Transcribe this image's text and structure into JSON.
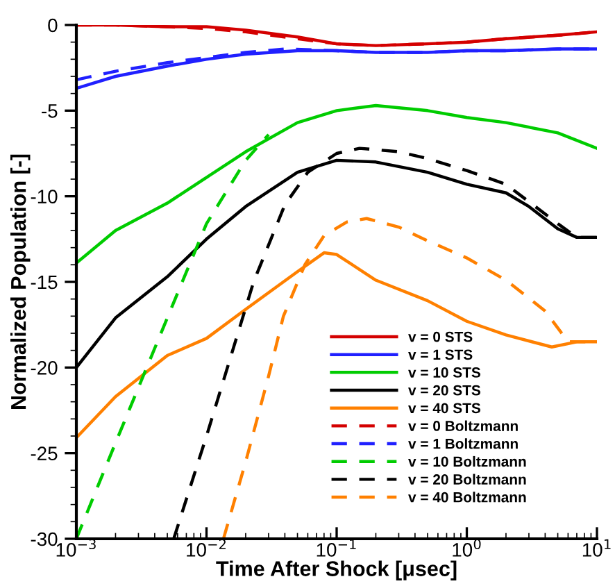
{
  "chart_data": {
    "type": "line",
    "xlabel": "Time After Shock [μsec]",
    "ylabel": "Normalized Population [-]",
    "log": "x",
    "grid": false,
    "legend": "bottom right",
    "xlim": [
      0.001,
      10
    ],
    "xticks": [
      {
        "value": 0.001,
        "label": "10$^{−3}$"
      },
      {
        "value": 0.01,
        "label": "10$^{−2}$"
      },
      {
        "value": 0.1,
        "label": "10$^{−1}$"
      },
      {
        "value": 1,
        "label": "10$^{0}$"
      },
      {
        "value": 10,
        "label": "10$^{1}$"
      }
    ],
    "ylim": [
      -30,
      0
    ],
    "yticks": [
      -30,
      -25,
      -20,
      -15,
      -10,
      -5,
      0
    ],
    "series": [
      {
        "name": "v = 0 STS",
        "color": "#d40000",
        "line_style": "solid",
        "x": [
          0.001,
          0.002,
          0.005,
          0.01,
          0.02,
          0.05,
          0.1,
          0.2,
          0.5,
          1,
          2,
          5,
          10
        ],
        "values": [
          0,
          0,
          -0.1,
          -0.1,
          -0.3,
          -0.7,
          -1.1,
          -1.2,
          -1.1,
          -1.0,
          -0.8,
          -0.6,
          -0.4
        ]
      },
      {
        "name": "v = 1 STS",
        "color": "#2020ff",
        "line_style": "solid",
        "x": [
          0.001,
          0.002,
          0.005,
          0.01,
          0.02,
          0.05,
          0.1,
          0.2,
          0.5,
          1,
          2,
          5,
          10
        ],
        "values": [
          -3.7,
          -3.0,
          -2.4,
          -2.0,
          -1.7,
          -1.5,
          -1.5,
          -1.6,
          -1.6,
          -1.5,
          -1.5,
          -1.4,
          -1.4
        ]
      },
      {
        "name": "v = 10 STS",
        "color": "#00cc00",
        "line_style": "solid",
        "x": [
          0.001,
          0.002,
          0.005,
          0.01,
          0.02,
          0.05,
          0.1,
          0.2,
          0.5,
          1,
          2,
          5,
          10
        ],
        "values": [
          -13.9,
          -12.0,
          -10.4,
          -8.9,
          -7.4,
          -5.7,
          -5.0,
          -4.7,
          -5.0,
          -5.4,
          -5.7,
          -6.3,
          -7.2
        ]
      },
      {
        "name": "v = 20 STS",
        "color": "#000000",
        "line_style": "solid",
        "x": [
          0.001,
          0.002,
          0.005,
          0.01,
          0.02,
          0.05,
          0.1,
          0.2,
          0.5,
          1,
          2,
          3,
          5,
          7,
          10
        ],
        "values": [
          -20.0,
          -17.1,
          -14.7,
          -12.5,
          -10.6,
          -8.6,
          -7.9,
          -8.0,
          -8.6,
          -9.3,
          -9.8,
          -10.6,
          -11.9,
          -12.4,
          -12.4
        ]
      },
      {
        "name": "v = 40 STS",
        "color": "#ff8000",
        "line_style": "solid",
        "x": [
          0.001,
          0.002,
          0.005,
          0.01,
          0.02,
          0.05,
          0.08,
          0.1,
          0.2,
          0.5,
          1,
          2,
          4.5,
          7,
          10
        ],
        "values": [
          -24.1,
          -21.7,
          -19.3,
          -18.3,
          -16.6,
          -14.4,
          -13.3,
          -13.4,
          -14.9,
          -16.1,
          -17.3,
          -18.1,
          -18.8,
          -18.5,
          -18.5
        ]
      },
      {
        "name": "v = 0 Boltzmann",
        "color": "#d40000",
        "line_style": "dashed",
        "x": [
          0.001,
          0.002,
          0.005,
          0.01,
          0.02,
          0.05,
          0.1,
          0.2,
          0.5,
          1,
          2,
          5,
          10
        ],
        "values": [
          0,
          0,
          -0.1,
          -0.2,
          -0.4,
          -0.8,
          -1.1,
          -1.2,
          -1.1,
          -1.0,
          -0.8,
          -0.6,
          -0.4
        ]
      },
      {
        "name": "v = 1 Boltzmann",
        "color": "#2020ff",
        "line_style": "dashed",
        "x": [
          0.001,
          0.002,
          0.005,
          0.01,
          0.02,
          0.04,
          0.1,
          0.2,
          0.5,
          1,
          2,
          5,
          10
        ],
        "values": [
          -3.2,
          -2.7,
          -2.2,
          -1.9,
          -1.6,
          -1.4,
          -1.5,
          -1.6,
          -1.6,
          -1.5,
          -1.5,
          -1.4,
          -1.4
        ]
      },
      {
        "name": "v = 10 Boltzmann",
        "color": "#00cc00",
        "line_style": "dashed",
        "x": [
          0.001,
          0.002,
          0.005,
          0.01,
          0.02,
          0.03
        ],
        "values": [
          -30,
          -24.4,
          -17.1,
          -11.6,
          -7.9,
          -6.4
        ]
      },
      {
        "name": "v = 20 Boltzmann",
        "color": "#000000",
        "line_style": "dashed",
        "x": [
          0.0056,
          0.01,
          0.023,
          0.04,
          0.06,
          0.1,
          0.15,
          0.3,
          0.5,
          1,
          2,
          5,
          7,
          10
        ],
        "values": [
          -30,
          -24,
          -15,
          -10.5,
          -8.6,
          -7.5,
          -7.2,
          -7.4,
          -7.8,
          -8.5,
          -9.3,
          -11.6,
          -12.4,
          -12.4
        ]
      },
      {
        "name": "v = 40 Boltzmann",
        "color": "#ff8000",
        "line_style": "dashed",
        "x": [
          0.0135,
          0.02,
          0.03,
          0.039,
          0.057,
          0.08,
          0.12,
          0.17,
          0.3,
          0.5,
          1,
          2,
          4,
          6,
          10
        ],
        "values": [
          -30,
          -25.5,
          -20.5,
          -17,
          -14,
          -12.3,
          -11.5,
          -11.3,
          -11.8,
          -12.6,
          -13.6,
          -14.9,
          -16.7,
          -18.5,
          -18.5
        ]
      }
    ]
  }
}
